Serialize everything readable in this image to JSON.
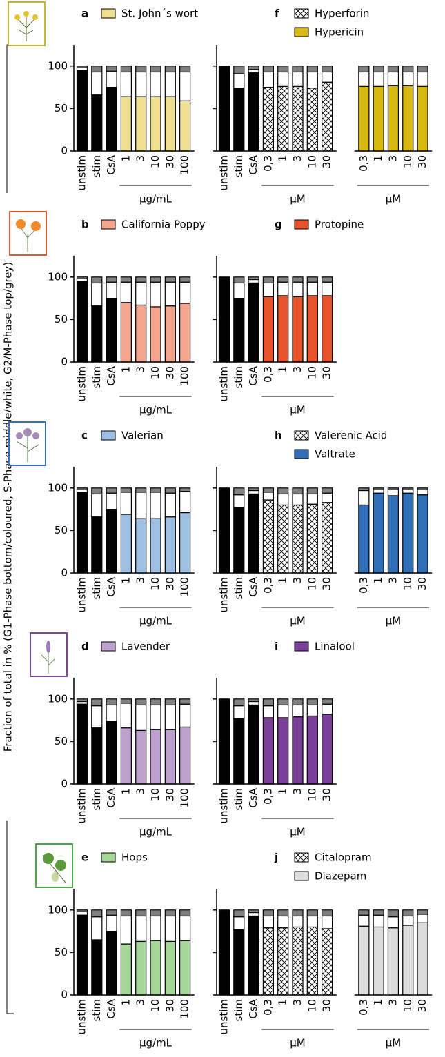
{
  "figure": {
    "ylabel": "Fraction of total  in % (G1-Phase bottom/coloured, S-Phase middle/white, G2/M-Phase top/grey)",
    "s_color": "#ffffff",
    "g2m_color": "#808080"
  },
  "chart_data": [
    {
      "type": "stacked_bar",
      "label": "a",
      "ylim": [
        0,
        125
      ],
      "yticks": [
        0,
        50,
        100
      ],
      "blocks": [
        {
          "categories": [
            "unstim",
            "stim",
            "CsA"
          ],
          "color": "#000000",
          "g1": [
            95,
            66,
            75
          ],
          "s": [
            3,
            27,
            19
          ],
          "g2m": [
            2,
            7,
            6
          ]
        },
        {
          "name": "St. John´s wort",
          "color": "#efe08f",
          "unit": "µg/mL",
          "categories": [
            "1",
            "3",
            "10",
            "30",
            "100"
          ],
          "g1": [
            64,
            64,
            64,
            64,
            59
          ],
          "s": [
            29,
            29,
            29,
            29,
            34
          ],
          "g2m": [
            7,
            7,
            7,
            7,
            7
          ]
        }
      ]
    },
    {
      "type": "stacked_bar",
      "label": "b",
      "ylim": [
        0,
        125
      ],
      "yticks": [
        0,
        50,
        100
      ],
      "blocks": [
        {
          "categories": [
            "unstim",
            "stim",
            "CsA"
          ],
          "color": "#000000",
          "g1": [
            95,
            66,
            75
          ],
          "s": [
            3,
            27,
            19
          ],
          "g2m": [
            2,
            7,
            6
          ]
        },
        {
          "name": "California Poppy",
          "color": "#f4a58e",
          "unit": "µg/mL",
          "categories": [
            "1",
            "3",
            "10",
            "30",
            "100"
          ],
          "g1": [
            70,
            67,
            65,
            66,
            69
          ],
          "s": [
            24,
            27,
            29,
            28,
            25
          ],
          "g2m": [
            6,
            6,
            6,
            6,
            6
          ]
        }
      ]
    },
    {
      "type": "stacked_bar",
      "label": "c",
      "ylim": [
        0,
        125
      ],
      "yticks": [
        0,
        50,
        100
      ],
      "blocks": [
        {
          "categories": [
            "unstim",
            "stim",
            "CsA"
          ],
          "color": "#000000",
          "g1": [
            95,
            66,
            75
          ],
          "s": [
            3,
            27,
            19
          ],
          "g2m": [
            2,
            7,
            6
          ]
        },
        {
          "name": "Valerian",
          "color": "#9dc0e3",
          "unit": "µg/mL",
          "categories": [
            "1",
            "3",
            "10",
            "30",
            "100"
          ],
          "g1": [
            69,
            64,
            64,
            66,
            71
          ],
          "s": [
            26,
            31,
            31,
            28,
            25
          ],
          "g2m": [
            5,
            5,
            5,
            6,
            4
          ]
        }
      ]
    },
    {
      "type": "stacked_bar",
      "label": "d",
      "ylim": [
        0,
        125
      ],
      "yticks": [
        0,
        50,
        100
      ],
      "blocks": [
        {
          "categories": [
            "unstim",
            "stim",
            "CsA"
          ],
          "color": "#000000",
          "g1": [
            94,
            66,
            74
          ],
          "s": [
            3,
            26,
            19
          ],
          "g2m": [
            3,
            8,
            7
          ]
        },
        {
          "name": "Lavender",
          "color": "#bfa1cf",
          "unit": "µg/mL",
          "categories": [
            "1",
            "3",
            "10",
            "30",
            "100"
          ],
          "g1": [
            66,
            63,
            64,
            64,
            67
          ],
          "s": [
            29,
            30,
            29,
            29,
            27
          ],
          "g2m": [
            5,
            7,
            7,
            7,
            6
          ]
        }
      ]
    },
    {
      "type": "stacked_bar",
      "label": "e",
      "ylim": [
        0,
        125
      ],
      "yticks": [
        0,
        50,
        100
      ],
      "blocks": [
        {
          "categories": [
            "unstim",
            "stim",
            "CsA"
          ],
          "color": "#000000",
          "g1": [
            94,
            65,
            75
          ],
          "s": [
            4,
            27,
            19
          ],
          "g2m": [
            2,
            8,
            6
          ]
        },
        {
          "name": "Hops",
          "color": "#a5d69a",
          "unit": "µg/mL",
          "categories": [
            "1",
            "3",
            "10",
            "30",
            "100"
          ],
          "g1": [
            60,
            63,
            64,
            63,
            64
          ],
          "s": [
            33,
            30,
            29,
            30,
            29
          ],
          "g2m": [
            7,
            7,
            7,
            7,
            7
          ]
        }
      ]
    },
    {
      "type": "stacked_bar",
      "label": "f",
      "ylim": [
        0,
        125
      ],
      "yticks": [
        0,
        50,
        100
      ],
      "blocks": [
        {
          "categories": [
            "unstim",
            "stim",
            "CsA"
          ],
          "color": "#000000",
          "g1": [
            98,
            74,
            92
          ],
          "s": [
            1,
            17,
            4
          ],
          "g2m": [
            1,
            9,
            4
          ]
        },
        {
          "name": "Hyperforin",
          "color": "#ffffff",
          "pattern": "crosshatch",
          "unit": "µM",
          "categories": [
            "0,3",
            "1",
            "3",
            "10",
            "30"
          ],
          "g1": [
            75,
            76,
            76,
            74,
            81
          ],
          "s": [
            18,
            17,
            17,
            19,
            12
          ],
          "g2m": [
            7,
            7,
            7,
            7,
            7
          ]
        },
        {
          "name": "Hypericin",
          "color": "#d8b90f",
          "unit": "µM",
          "categories": [
            "0,3",
            "1",
            "3",
            "10",
            "30"
          ],
          "g1": [
            76,
            76,
            77,
            77,
            76
          ],
          "s": [
            17,
            17,
            16,
            16,
            17
          ],
          "g2m": [
            7,
            7,
            7,
            7,
            7
          ]
        }
      ]
    },
    {
      "type": "stacked_bar",
      "label": "g",
      "ylim": [
        0,
        125
      ],
      "yticks": [
        0,
        50,
        100
      ],
      "blocks": [
        {
          "categories": [
            "unstim",
            "stim",
            "CsA"
          ],
          "color": "#000000",
          "g1": [
            98,
            75,
            93
          ],
          "s": [
            1,
            18,
            4
          ],
          "g2m": [
            1,
            7,
            3
          ]
        },
        {
          "name": "Protopine",
          "color": "#e8532a",
          "unit": "µM",
          "categories": [
            "0,3",
            "1",
            "3",
            "10",
            "30"
          ],
          "g1": [
            77,
            78,
            77,
            78,
            78
          ],
          "s": [
            16,
            16,
            17,
            16,
            16
          ],
          "g2m": [
            7,
            6,
            6,
            6,
            6
          ]
        }
      ]
    },
    {
      "type": "stacked_bar",
      "label": "h",
      "ylim": [
        0,
        125
      ],
      "yticks": [
        0,
        50,
        100
      ],
      "blocks": [
        {
          "categories": [
            "unstim",
            "stim",
            "CsA"
          ],
          "color": "#000000",
          "g1": [
            98,
            77,
            93
          ],
          "s": [
            1,
            15,
            4
          ],
          "g2m": [
            1,
            8,
            3
          ]
        },
        {
          "name": "Valerenic Acid",
          "color": "#ffffff",
          "pattern": "crosshatch",
          "unit": "µM",
          "categories": [
            "0,3",
            "1",
            "3",
            "10",
            "30"
          ],
          "g1": [
            86,
            80,
            80,
            81,
            83
          ],
          "s": [
            9,
            13,
            13,
            12,
            11
          ],
          "g2m": [
            5,
            7,
            7,
            7,
            6
          ]
        },
        {
          "name": "Valtrate",
          "color": "#2f6fb7",
          "unit": "µM",
          "categories": [
            "0,3",
            "1",
            "3",
            "10",
            "30"
          ],
          "g1": [
            80,
            94,
            91,
            94,
            92
          ],
          "s": [
            17,
            4,
            7,
            4,
            6
          ],
          "g2m": [
            3,
            2,
            2,
            2,
            2
          ]
        }
      ]
    },
    {
      "type": "stacked_bar",
      "label": "i",
      "ylim": [
        0,
        125
      ],
      "yticks": [
        0,
        50,
        100
      ],
      "blocks": [
        {
          "categories": [
            "unstim",
            "stim",
            "CsA"
          ],
          "color": "#000000",
          "g1": [
            98,
            77,
            93
          ],
          "s": [
            1,
            15,
            4
          ],
          "g2m": [
            1,
            8,
            3
          ]
        },
        {
          "name": "Linalool",
          "color": "#7a3f98",
          "unit": "µM",
          "categories": [
            "0,3",
            "1",
            "3",
            "10",
            "30"
          ],
          "g1": [
            78,
            78,
            79,
            80,
            82
          ],
          "s": [
            14,
            15,
            14,
            13,
            12
          ],
          "g2m": [
            8,
            7,
            7,
            7,
            6
          ]
        }
      ]
    },
    {
      "type": "stacked_bar",
      "label": "j",
      "ylim": [
        0,
        125
      ],
      "yticks": [
        0,
        50,
        100
      ],
      "blocks": [
        {
          "categories": [
            "unstim",
            "stim",
            "CsA"
          ],
          "color": "#000000",
          "g1": [
            98,
            77,
            93
          ],
          "s": [
            1,
            15,
            4
          ],
          "g2m": [
            1,
            8,
            3
          ]
        },
        {
          "name": "Citalopram",
          "color": "#ffffff",
          "pattern": "crosshatch",
          "unit": "µM",
          "categories": [
            "0,3",
            "1",
            "3",
            "10",
            "30"
          ],
          "g1": [
            79,
            79,
            80,
            80,
            78
          ],
          "s": [
            14,
            14,
            13,
            13,
            15
          ],
          "g2m": [
            7,
            7,
            7,
            7,
            7
          ]
        },
        {
          "name": "Diazepam",
          "color": "#dcdcdc",
          "unit": "µM",
          "categories": [
            "0,3",
            "1",
            "3",
            "10",
            "30"
          ],
          "g1": [
            81,
            80,
            79,
            82,
            85
          ],
          "s": [
            13,
            14,
            13,
            11,
            10
          ],
          "g2m": [
            6,
            6,
            8,
            7,
            5
          ]
        }
      ]
    }
  ]
}
